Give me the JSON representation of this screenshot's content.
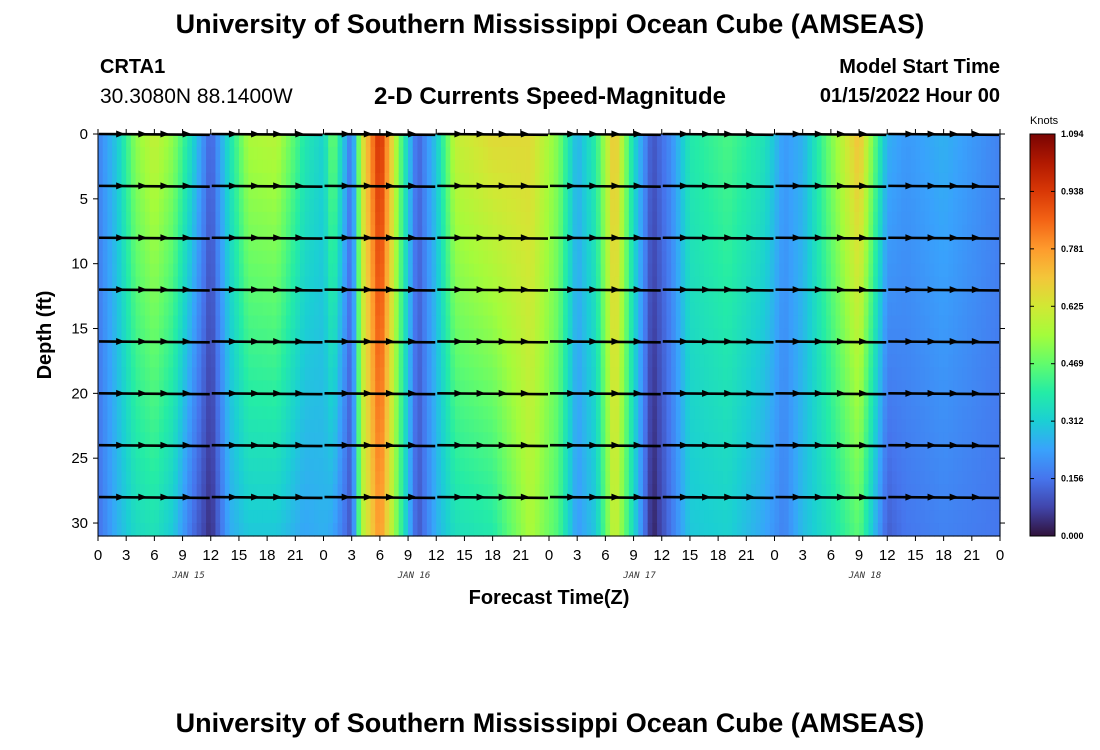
{
  "header": {
    "title": "University of Southern Mississippi Ocean Cube (AMSEAS)",
    "station_name": "CRTA1",
    "station_coords": "30.3080N  88.1400W",
    "subtitle": "2-D Currents Speed-Magnitude",
    "model_start_label": "Model Start Time",
    "model_start_value": "01/15/2022 Hour 00"
  },
  "footer": {
    "title": "University of Southern Mississippi Ocean Cube (AMSEAS)"
  },
  "chart_data": {
    "type": "heatmap",
    "title": "2-D Currents Speed-Magnitude",
    "xlabel": "Forecast Time(Z)",
    "ylabel": "Depth (ft)",
    "x_hours_range": [
      0,
      96
    ],
    "ylim": [
      0,
      31
    ],
    "y_ticks": [
      0,
      5,
      10,
      15,
      20,
      25,
      30
    ],
    "x_tick_labels": [
      "0",
      "3",
      "6",
      "9",
      "12",
      "15",
      "18",
      "21",
      "0",
      "3",
      "6",
      "9",
      "12",
      "15",
      "18",
      "21",
      "0",
      "3",
      "6",
      "9",
      "12",
      "15",
      "18",
      "21",
      "0",
      "3",
      "6",
      "9",
      "12",
      "15",
      "18",
      "21",
      "0"
    ],
    "day_labels": [
      {
        "label": "JAN 15",
        "hour": 12
      },
      {
        "label": "JAN 16",
        "hour": 36
      },
      {
        "label": "JAN 17",
        "hour": 60
      },
      {
        "label": "JAN 18",
        "hour": 84
      }
    ],
    "colorbar": {
      "unit": "Knots",
      "min": 0.0,
      "max": 1.094,
      "tick_labels": [
        "0.000",
        "0.156",
        "0.312",
        "0.469",
        "0.625",
        "0.781",
        "0.938",
        "1.094"
      ],
      "palette": [
        "#30123b",
        "#4145ab",
        "#4675ed",
        "#39a2fc",
        "#1bcfd4",
        "#24eca6",
        "#61fc6c",
        "#a4fc3b",
        "#d1e834",
        "#f3c63a",
        "#fe9b2d",
        "#f36315",
        "#d93806",
        "#b11901",
        "#7a0403"
      ]
    },
    "speed_profile_knots": [
      {
        "hour": 0,
        "surface": 0.18,
        "bottom": 0.15
      },
      {
        "hour": 2,
        "surface": 0.3,
        "bottom": 0.26
      },
      {
        "hour": 4,
        "surface": 0.52,
        "bottom": 0.34
      },
      {
        "hour": 6,
        "surface": 0.6,
        "bottom": 0.36
      },
      {
        "hour": 8,
        "surface": 0.52,
        "bottom": 0.3
      },
      {
        "hour": 10,
        "surface": 0.34,
        "bottom": 0.15
      },
      {
        "hour": 12,
        "surface": 0.12,
        "bottom": 0.04
      },
      {
        "hour": 14,
        "surface": 0.36,
        "bottom": 0.25
      },
      {
        "hour": 16,
        "surface": 0.56,
        "bottom": 0.3
      },
      {
        "hour": 19,
        "surface": 0.58,
        "bottom": 0.3
      },
      {
        "hour": 22,
        "surface": 0.38,
        "bottom": 0.24
      },
      {
        "hour": 24,
        "surface": 0.32,
        "bottom": 0.26
      },
      {
        "hour": 25,
        "surface": 0.5,
        "bottom": 0.24
      },
      {
        "hour": 27,
        "surface": 0.14,
        "bottom": 0.1
      },
      {
        "hour": 28,
        "surface": 0.6,
        "bottom": 0.55
      },
      {
        "hour": 30,
        "surface": 0.98,
        "bottom": 0.8
      },
      {
        "hour": 32,
        "surface": 0.5,
        "bottom": 0.46
      },
      {
        "hour": 34,
        "surface": 0.12,
        "bottom": 0.1
      },
      {
        "hour": 36,
        "surface": 0.3,
        "bottom": 0.26
      },
      {
        "hour": 38,
        "surface": 0.6,
        "bottom": 0.35
      },
      {
        "hour": 42,
        "surface": 0.66,
        "bottom": 0.38
      },
      {
        "hour": 46,
        "surface": 0.66,
        "bottom": 0.56
      },
      {
        "hour": 49,
        "surface": 0.5,
        "bottom": 0.44
      },
      {
        "hour": 51,
        "surface": 0.26,
        "bottom": 0.22
      },
      {
        "hour": 53,
        "surface": 0.4,
        "bottom": 0.3
      },
      {
        "hour": 55,
        "surface": 0.72,
        "bottom": 0.62
      },
      {
        "hour": 57,
        "surface": 0.34,
        "bottom": 0.34
      },
      {
        "hour": 59,
        "surface": 0.1,
        "bottom": 0.02
      },
      {
        "hour": 61,
        "surface": 0.2,
        "bottom": 0.16
      },
      {
        "hour": 63,
        "surface": 0.38,
        "bottom": 0.3
      },
      {
        "hour": 67,
        "surface": 0.44,
        "bottom": 0.32
      },
      {
        "hour": 71,
        "surface": 0.36,
        "bottom": 0.24
      },
      {
        "hour": 73,
        "surface": 0.22,
        "bottom": 0.18
      },
      {
        "hour": 75,
        "surface": 0.26,
        "bottom": 0.28
      },
      {
        "hour": 78,
        "surface": 0.5,
        "bottom": 0.36
      },
      {
        "hour": 81,
        "surface": 0.72,
        "bottom": 0.46
      },
      {
        "hour": 84,
        "surface": 0.26,
        "bottom": 0.12
      },
      {
        "hour": 86,
        "surface": 0.22,
        "bottom": 0.16
      },
      {
        "hour": 90,
        "surface": 0.26,
        "bottom": 0.18
      },
      {
        "hour": 96,
        "surface": 0.18,
        "bottom": 0.16
      }
    ],
    "vector_depths_ft": [
      0,
      4,
      8,
      12,
      16,
      20,
      24,
      28
    ],
    "vector_hours": [
      0,
      12,
      24,
      36,
      48,
      60,
      72,
      84,
      96
    ]
  }
}
